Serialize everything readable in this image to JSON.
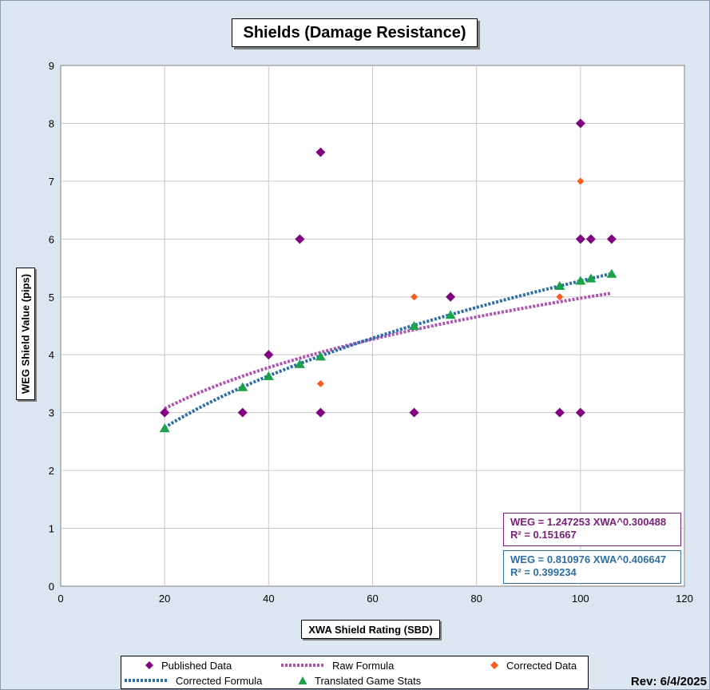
{
  "chart_data": {
    "type": "scatter",
    "title": "Shields (Damage Resistance)",
    "xlabel": "XWA Shield Rating (SBD)",
    "ylabel": "WEG Shield Value (pips)",
    "xlim": [
      0,
      120
    ],
    "ylim": [
      0,
      9
    ],
    "x_ticks": [
      0,
      20,
      40,
      60,
      80,
      100,
      120
    ],
    "y_ticks": [
      0,
      1,
      2,
      3,
      4,
      5,
      6,
      7,
      8,
      9
    ],
    "grid": true,
    "legend_position": "bottom",
    "series": [
      {
        "name": "Published Data",
        "marker": "diamond",
        "color": "#800080",
        "points": [
          [
            20,
            3
          ],
          [
            35,
            3
          ],
          [
            40,
            4
          ],
          [
            46,
            6
          ],
          [
            50,
            7.5
          ],
          [
            50,
            3
          ],
          [
            68,
            3
          ],
          [
            75,
            5
          ],
          [
            96,
            3
          ],
          [
            100,
            8
          ],
          [
            100,
            6
          ],
          [
            100,
            3
          ],
          [
            102,
            6
          ],
          [
            106,
            6
          ]
        ]
      },
      {
        "name": "Raw Formula",
        "line": "dotted",
        "color": "#b054b0",
        "formula": {
          "a": 1.247253,
          "b": 0.300488,
          "x_range": [
            20,
            106
          ]
        }
      },
      {
        "name": "Corrected Data",
        "marker": "diamond",
        "color": "#ff5a1f",
        "points": [
          [
            50,
            3.5
          ],
          [
            68,
            5
          ],
          [
            96,
            5
          ],
          [
            100,
            7
          ]
        ]
      },
      {
        "name": "Corrected Formula",
        "line": "dotted",
        "color": "#2e6ea6",
        "formula": {
          "a": 0.810976,
          "b": 0.406647,
          "x_range": [
            20,
            106
          ]
        }
      },
      {
        "name": "Translated Game Stats",
        "marker": "triangle",
        "color": "#1aa34a",
        "points": [
          [
            20,
            2.73
          ],
          [
            35,
            3.44
          ],
          [
            40,
            3.63
          ],
          [
            46,
            3.84
          ],
          [
            50,
            3.97
          ],
          [
            68,
            4.5
          ],
          [
            75,
            4.69
          ],
          [
            96,
            5.19
          ],
          [
            100,
            5.28
          ],
          [
            102,
            5.32
          ],
          [
            106,
            5.4
          ]
        ]
      }
    ],
    "annotations": {
      "raw_equation": "WEG = 1.247253 XWA^0.300488",
      "raw_r2": "R² = 0.151667",
      "corrected_equation": "WEG = 0.810976 XWA^0.406647",
      "corrected_r2": "R² = 0.399234"
    }
  },
  "revision": "Rev: 6/4/2025"
}
